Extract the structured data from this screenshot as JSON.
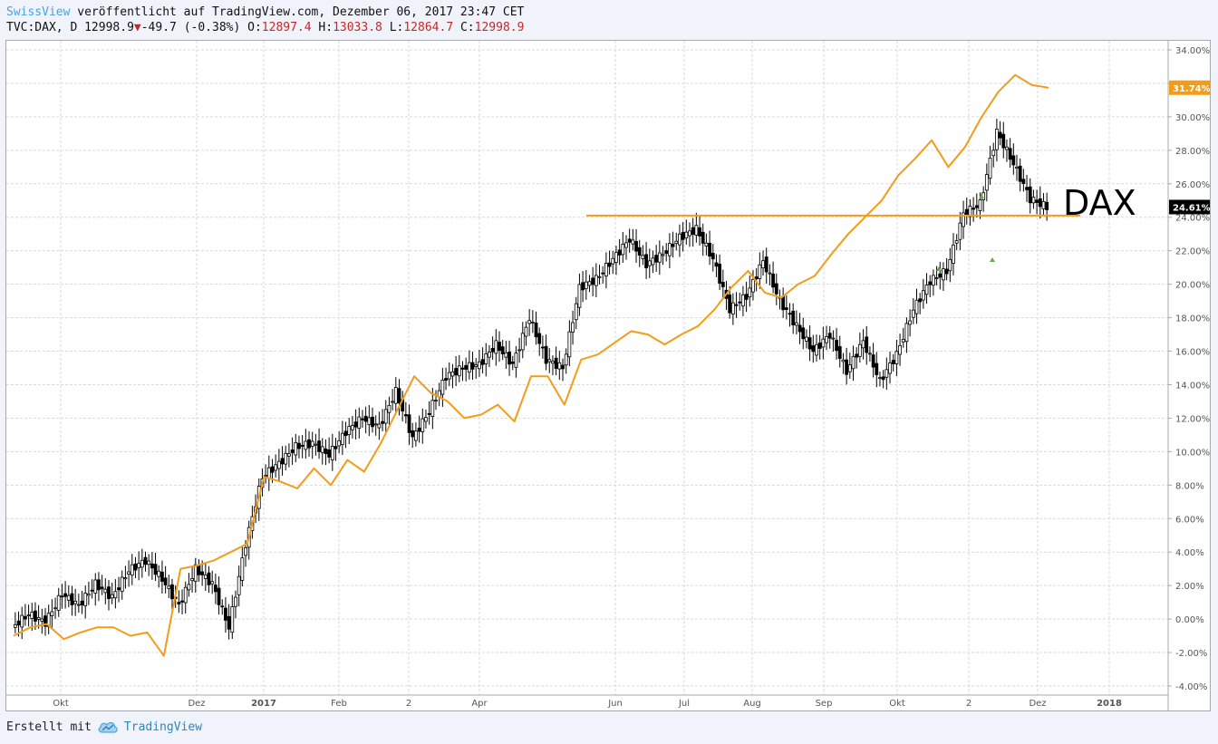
{
  "header": {
    "publisher": "SwissView",
    "published_text": " veröffentlicht auf TradingView.com, Dezember 06, 2017 23:47 CET",
    "symbol": "TVC:DAX, D",
    "last": "12998.9",
    "change_arrow": "▼",
    "change": "-49.7 (-0.38%)",
    "o_label": "O:",
    "o_value": "12897.4",
    "h_label": "H:",
    "h_value": "13033.8",
    "l_label": "L:",
    "l_value": "12864.7",
    "c_label": "C:",
    "c_value": "12998.9"
  },
  "footer": {
    "created_with": "Erstellt mit",
    "brand": "TradingView",
    "logo_icon": "cloud-icon"
  },
  "colors": {
    "candle": "#000000",
    "compare_line": "#f39c1a",
    "grid": "#d7d9dc",
    "price_label_bg": "#000000",
    "compare_label_bg": "#f39c1a",
    "marker": "#6aa84f"
  },
  "chart_data": {
    "type": "line",
    "title": "",
    "xlabel": "",
    "ylabel": "",
    "ylim": [
      -4,
      34
    ],
    "y_ticks": [
      "34.00%",
      "32.00%",
      "30.00%",
      "28.00%",
      "26.00%",
      "24.00%",
      "22.00%",
      "20.00%",
      "18.00%",
      "16.00%",
      "14.00%",
      "12.00%",
      "10.00%",
      "8.00%",
      "6.00%",
      "4.00%",
      "2.00%",
      "0.00%",
      "-2.00%",
      "-4.00%"
    ],
    "x_ticks": [
      "Okt",
      "Dez",
      "2017",
      "Feb",
      "2",
      "Apr",
      "Jun",
      "Jul",
      "Aug",
      "Sep",
      "Okt",
      "2",
      "Dez",
      "2018"
    ],
    "annotation": "DAX",
    "current_labels": {
      "dax": "24.61%",
      "compare": "31.74%"
    },
    "series": [
      {
        "style": "candles",
        "x": [
          0,
          1,
          2,
          3,
          4,
          5,
          6,
          7,
          8,
          9,
          10,
          11,
          12,
          13,
          14,
          15,
          16,
          17,
          18,
          19,
          20,
          21,
          22,
          23,
          24,
          25,
          26,
          27,
          28,
          29,
          30,
          31,
          32,
          33,
          34,
          35,
          36,
          37,
          38,
          39,
          40,
          41,
          42,
          43,
          44,
          45,
          46,
          47,
          48,
          49,
          50,
          51,
          52,
          53,
          54,
          55,
          56,
          57,
          58,
          59,
          60,
          61,
          62
        ],
        "values": [
          -0.5,
          0.3,
          -0.2,
          1.5,
          0.8,
          2.1,
          1.3,
          2.9,
          3.5,
          2.4,
          0.8,
          3.0,
          2.1,
          -0.5,
          4.5,
          8.5,
          9.3,
          10.3,
          10.5,
          9.8,
          11.2,
          12.0,
          11.5,
          13.6,
          10.8,
          12.4,
          14.5,
          15.0,
          15.2,
          16.4,
          15.2,
          18.0,
          15.5,
          15.0,
          19.8,
          20.3,
          21.5,
          22.7,
          21.2,
          21.8,
          22.8,
          23.3,
          21.5,
          18.5,
          19.3,
          21.4,
          19.0,
          17.5,
          16.0,
          17.0,
          14.8,
          16.6,
          14.2,
          15.8,
          18.5,
          20.2,
          20.8,
          24.2,
          24.8,
          29.1,
          27.2,
          25.1,
          24.6
        ]
      },
      {
        "style": "line",
        "x": [
          0,
          1,
          2,
          3,
          4,
          5,
          6,
          7,
          8,
          9,
          10,
          11,
          12,
          13,
          14,
          15,
          16,
          17,
          18,
          19,
          20,
          21,
          22,
          23,
          24,
          25,
          26,
          27,
          28,
          29,
          30,
          31,
          32,
          33,
          34,
          35,
          36,
          37,
          38,
          39,
          40,
          41,
          42,
          43,
          44,
          45,
          46,
          47,
          48,
          49,
          50,
          51,
          52,
          53,
          54,
          55,
          56,
          57,
          58,
          59,
          60,
          61,
          62
        ],
        "values": [
          -1.0,
          -0.5,
          -0.3,
          -1.2,
          -0.8,
          -0.5,
          -0.5,
          -1.0,
          -0.8,
          -2.2,
          3.0,
          3.2,
          3.5,
          4.0,
          4.5,
          8.5,
          8.2,
          7.8,
          9.0,
          8.0,
          9.5,
          8.8,
          10.5,
          12.5,
          14.5,
          13.5,
          13.0,
          12.0,
          12.2,
          12.8,
          11.8,
          14.5,
          14.5,
          12.8,
          15.5,
          15.8,
          16.5,
          17.2,
          17.0,
          16.4,
          17.0,
          17.5,
          18.5,
          19.8,
          20.8,
          19.5,
          19.2,
          20.0,
          20.5,
          21.8,
          23.0,
          24.0,
          25.0,
          26.5,
          27.5,
          28.6,
          27.0,
          28.2,
          30.0,
          31.5,
          32.5,
          31.9,
          31.74
        ]
      }
    ],
    "horizontal_line": 24.1,
    "grid": true
  }
}
